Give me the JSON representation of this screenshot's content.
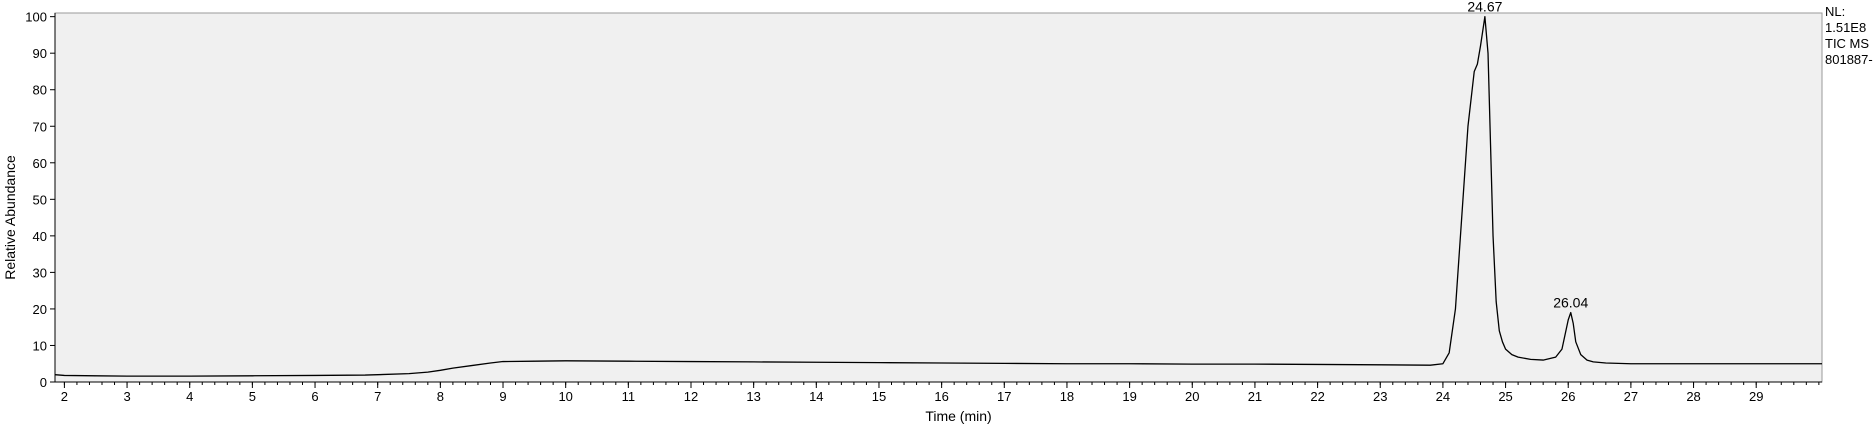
{
  "chart_data": {
    "type": "line",
    "xlabel": "Time (min)",
    "ylabel": "Relative Abundance",
    "xlim": [
      1.85,
      30.05
    ],
    "ylim": [
      0,
      101
    ],
    "x_ticks": [
      2,
      3,
      4,
      5,
      6,
      7,
      8,
      9,
      10,
      11,
      12,
      13,
      14,
      15,
      16,
      17,
      18,
      19,
      20,
      21,
      22,
      23,
      24,
      25,
      26,
      27,
      28,
      29
    ],
    "y_ticks": [
      0,
      10,
      20,
      30,
      40,
      50,
      60,
      70,
      80,
      90,
      100
    ],
    "minor_x_step": 0.2,
    "grid": false,
    "line_color": "#000000",
    "plot_background": "#f0f0f0",
    "series": [
      {
        "x": [
          1.85,
          2.0,
          2.5,
          3.0,
          4.0,
          5.0,
          6.0,
          6.8,
          7.0,
          7.5,
          7.8,
          8.0,
          8.2,
          8.5,
          8.8,
          9.0,
          9.5,
          10.0,
          11.0,
          12.0,
          13.0,
          14.0,
          15.0,
          16.0,
          17.0,
          18.0,
          19.0,
          20.0,
          21.0,
          22.0,
          23.0,
          23.8,
          24.0,
          24.1,
          24.2,
          24.3,
          24.4,
          24.5,
          24.55,
          24.6,
          24.67,
          24.72,
          24.76,
          24.8,
          24.85,
          24.9,
          24.95,
          25.0,
          25.1,
          25.2,
          25.4,
          25.6,
          25.8,
          25.9,
          25.95,
          26.0,
          26.04,
          26.08,
          26.12,
          26.2,
          26.3,
          26.4,
          26.6,
          27.0,
          28.0,
          29.0,
          30.05
        ],
        "y": [
          2.0,
          1.8,
          1.7,
          1.6,
          1.6,
          1.7,
          1.8,
          1.9,
          2.0,
          2.3,
          2.7,
          3.2,
          3.8,
          4.5,
          5.2,
          5.6,
          5.7,
          5.8,
          5.7,
          5.6,
          5.5,
          5.4,
          5.3,
          5.2,
          5.1,
          5.0,
          5.0,
          4.9,
          4.9,
          4.8,
          4.7,
          4.6,
          5.0,
          8.0,
          20.0,
          45.0,
          70.0,
          85.0,
          87.0,
          92.0,
          100.0,
          90.0,
          65.0,
          40.0,
          22.0,
          14.0,
          11.0,
          9.0,
          7.5,
          6.8,
          6.2,
          6.0,
          6.8,
          9.0,
          13.0,
          17.0,
          19.0,
          16.0,
          11.0,
          7.5,
          6.0,
          5.5,
          5.2,
          5.0,
          5.0,
          5.0,
          5.0
        ]
      }
    ],
    "peak_labels": [
      {
        "x": 24.67,
        "y": 100.0,
        "label": "24.67"
      },
      {
        "x": 26.04,
        "y": 19.0,
        "label": "26.04"
      }
    ]
  },
  "info_panel": {
    "nl_label": "NL:",
    "nl_value": "1.51E8",
    "scan_filter": "TIC  MS",
    "sample_id": "801887-"
  }
}
